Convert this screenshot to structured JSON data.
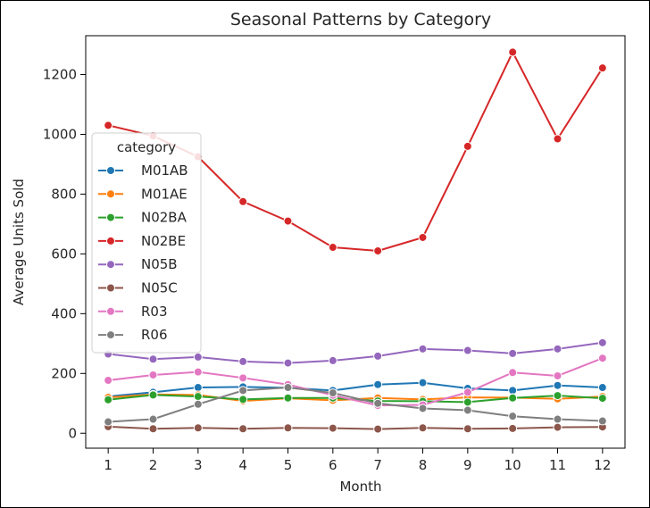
{
  "chart_data": {
    "type": "line",
    "title": "Seasonal Patterns by Category",
    "xlabel": "Month",
    "ylabel": "Average Units Sold",
    "x": [
      1,
      2,
      3,
      4,
      5,
      6,
      7,
      8,
      9,
      10,
      11,
      12
    ],
    "xlim": [
      0.5,
      12.5
    ],
    "ylim": [
      -50,
      1330
    ],
    "yticks": [
      0,
      200,
      400,
      600,
      800,
      1000,
      1200
    ],
    "grid": false,
    "markers": true,
    "legend": {
      "title": "category",
      "placement": "center-left"
    },
    "series": [
      {
        "name": "M01AB",
        "color": "#1f77b4",
        "values": [
          123,
          137,
          153,
          155,
          152,
          143,
          163,
          169,
          150,
          143,
          160,
          153
        ]
      },
      {
        "name": "M01AE",
        "color": "#ff7f0e",
        "values": [
          120,
          130,
          128,
          108,
          117,
          110,
          118,
          113,
          120,
          119,
          115,
          123
        ]
      },
      {
        "name": "N02BA",
        "color": "#2ca02c",
        "values": [
          112,
          128,
          123,
          113,
          118,
          118,
          108,
          107,
          104,
          118,
          126,
          117
        ]
      },
      {
        "name": "N02BE",
        "color": "#d62728",
        "values": [
          1030,
          995,
          925,
          775,
          710,
          622,
          610,
          655,
          960,
          1275,
          985,
          1222
        ]
      },
      {
        "name": "N05B",
        "color": "#9467bd",
        "values": [
          265,
          248,
          255,
          240,
          235,
          243,
          258,
          282,
          277,
          267,
          282,
          303
        ]
      },
      {
        "name": "N05C",
        "color": "#8c564b",
        "values": [
          22,
          15,
          18,
          15,
          18,
          17,
          14,
          18,
          15,
          16,
          20,
          21
        ]
      },
      {
        "name": "R03",
        "color": "#e377c2",
        "values": [
          177,
          195,
          205,
          185,
          163,
          127,
          93,
          95,
          137,
          203,
          192,
          251
        ]
      },
      {
        "name": "R06",
        "color": "#7f7f7f",
        "values": [
          38,
          47,
          97,
          143,
          153,
          135,
          100,
          83,
          77,
          57,
          47,
          41
        ]
      }
    ]
  }
}
